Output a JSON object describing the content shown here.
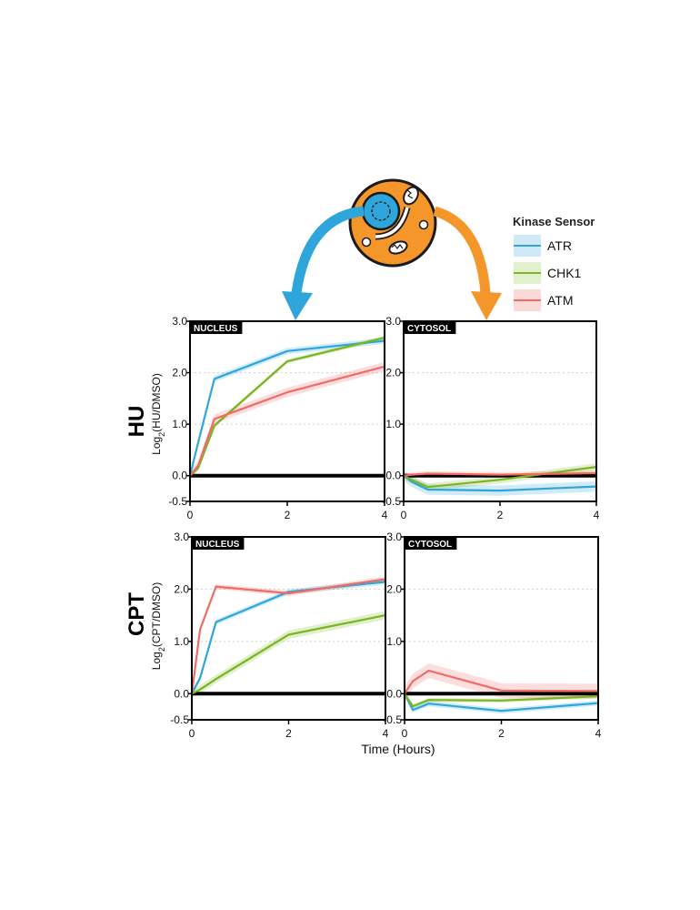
{
  "colors": {
    "atr": "#2ea6dc",
    "chk1": "#79b51f",
    "atm": "#ef6b64",
    "orange": "#f4962a",
    "blue_arrow": "#2ea6dc",
    "orange_arrow": "#f4962a"
  },
  "legend": {
    "title": "Kinase Sensor",
    "items": [
      {
        "label": "ATR",
        "color": "#2ea6dc"
      },
      {
        "label": "CHK1",
        "color": "#79b51f"
      },
      {
        "label": "ATM",
        "color": "#ef6b64"
      }
    ]
  },
  "axis": {
    "xlabel": "Time (Hours)"
  },
  "rows": [
    {
      "label": "HU",
      "ylabel_main": "Log",
      "ylabel_sub": "2",
      "ylabel_rest": "(HU/DMSO)"
    },
    {
      "label": "CPT",
      "ylabel_main": "Log",
      "ylabel_sub": "2",
      "ylabel_rest": "(CPT/DMSO)"
    }
  ],
  "chart_data": [
    {
      "type": "line",
      "row": "HU",
      "panel": "NUCLEUS",
      "xlim": [
        0,
        4
      ],
      "ylim": [
        -0.5,
        3.0
      ],
      "xticks": [
        0,
        2,
        4
      ],
      "yticks": [
        -0.5,
        0.0,
        1.0,
        2.0,
        3.0
      ],
      "ytick_labels": [
        "-0.5",
        "0.0",
        "1.0",
        "2.0",
        "3.0"
      ],
      "x": [
        0,
        0.17,
        0.5,
        2,
        4
      ],
      "series": [
        {
          "name": "ATR",
          "values": [
            0.0,
            0.65,
            1.88,
            2.42,
            2.62
          ],
          "band": 0.06
        },
        {
          "name": "CHK1",
          "values": [
            0.0,
            0.15,
            0.97,
            2.22,
            2.68
          ],
          "band": 0.04
        },
        {
          "name": "ATM",
          "values": [
            0.0,
            0.2,
            1.1,
            1.62,
            2.12
          ],
          "band": 0.09
        }
      ]
    },
    {
      "type": "line",
      "row": "HU",
      "panel": "CYTOSOL",
      "xlim": [
        0,
        4
      ],
      "ylim": [
        -0.5,
        3.0
      ],
      "xticks": [
        0,
        2,
        4
      ],
      "yticks": [
        -0.5,
        0.0,
        1.0,
        2.0,
        3.0
      ],
      "ytick_labels": [
        "-0.5",
        "0.0",
        "1.0",
        "2.0",
        "3.0"
      ],
      "x": [
        0,
        0.17,
        0.5,
        2,
        4
      ],
      "series": [
        {
          "name": "ATR",
          "values": [
            0.0,
            -0.12,
            -0.27,
            -0.29,
            -0.21
          ],
          "band": 0.1
        },
        {
          "name": "CHK1",
          "values": [
            0.0,
            -0.08,
            -0.22,
            -0.08,
            0.17
          ],
          "band": 0.07
        },
        {
          "name": "ATM",
          "values": [
            0.0,
            0.02,
            0.04,
            0.02,
            0.05
          ],
          "band": 0.05
        }
      ]
    },
    {
      "type": "line",
      "row": "CPT",
      "panel": "NUCLEUS",
      "xlim": [
        0,
        4
      ],
      "ylim": [
        -0.5,
        3.0
      ],
      "xticks": [
        0,
        2,
        4
      ],
      "yticks": [
        -0.5,
        0.0,
        1.0,
        2.0,
        3.0
      ],
      "ytick_labels": [
        "-0.5",
        "0.0",
        "1.0",
        "2.0",
        "3.0"
      ],
      "x": [
        0,
        0.17,
        0.5,
        2,
        4
      ],
      "series": [
        {
          "name": "ATR",
          "values": [
            0.0,
            0.3,
            1.37,
            1.95,
            2.14
          ],
          "band": 0.05
        },
        {
          "name": "CHK1",
          "values": [
            0.0,
            0.08,
            0.28,
            1.13,
            1.5
          ],
          "band": 0.08
        },
        {
          "name": "ATM",
          "values": [
            0.0,
            1.23,
            2.05,
            1.92,
            2.19
          ],
          "band": 0.05
        }
      ]
    },
    {
      "type": "line",
      "row": "CPT",
      "panel": "CYTOSOL",
      "xlim": [
        0,
        4
      ],
      "ylim": [
        -0.5,
        3.0
      ],
      "xticks": [
        0,
        2,
        4
      ],
      "yticks": [
        -0.5,
        0.0,
        1.0,
        2.0,
        3.0
      ],
      "ytick_labels": [
        "-0.5",
        "0.0",
        "1.0",
        "2.0",
        "3.0"
      ],
      "x": [
        0,
        0.17,
        0.5,
        2,
        4
      ],
      "series": [
        {
          "name": "ATR",
          "values": [
            0.0,
            -0.31,
            -0.19,
            -0.33,
            -0.18
          ],
          "band": 0.05
        },
        {
          "name": "CHK1",
          "values": [
            0.0,
            -0.24,
            -0.12,
            -0.13,
            -0.05
          ],
          "band": 0.04
        },
        {
          "name": "ATM",
          "values": [
            0.0,
            0.24,
            0.44,
            0.06,
            0.05
          ],
          "band": 0.14
        }
      ]
    }
  ]
}
